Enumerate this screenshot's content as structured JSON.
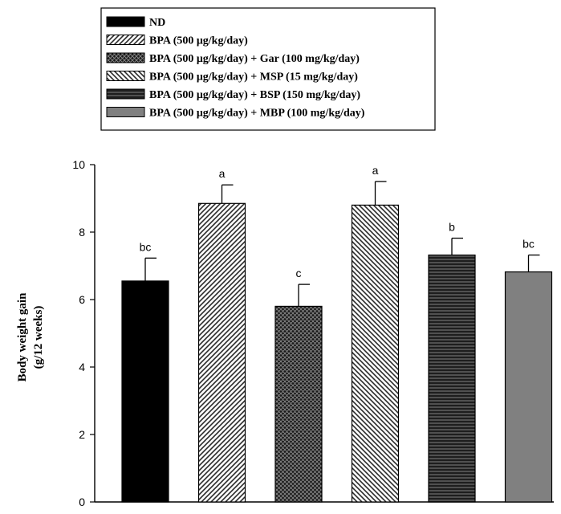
{
  "chart_data": {
    "type": "bar",
    "categories": [
      "ND",
      "BPA (500 μg/kg/day)",
      "BPA (500 μg/kg/day) + Gar (100 mg/kg/day)",
      "BPA (500 μg/kg/day) + MSP (15 mg/kg/day)",
      "BPA (500 μg/kg/day) + BSP (150 mg/kg/day)",
      "BPA (500 μg/kg/day) + MBP (100 mg/kg/day)"
    ],
    "values": [
      6.55,
      8.85,
      5.8,
      8.8,
      7.32,
      6.82
    ],
    "errors": [
      0.68,
      0.55,
      0.65,
      0.7,
      0.5,
      0.5
    ],
    "significance": [
      "bc",
      "a",
      "c",
      "a",
      "b",
      "bc"
    ],
    "patterns": [
      "solid-black",
      "diag-right",
      "crosshatch",
      "diag-left",
      "horizontal",
      "solid-gray"
    ],
    "title": "",
    "xlabel": "",
    "ylabel_lines": [
      "Body weight gain",
      "(g/12 weeks)"
    ],
    "ylim": [
      0,
      10
    ],
    "yticks": [
      "0",
      "2",
      "4",
      "6",
      "8",
      "10"
    ],
    "legend_position": "top-center"
  }
}
